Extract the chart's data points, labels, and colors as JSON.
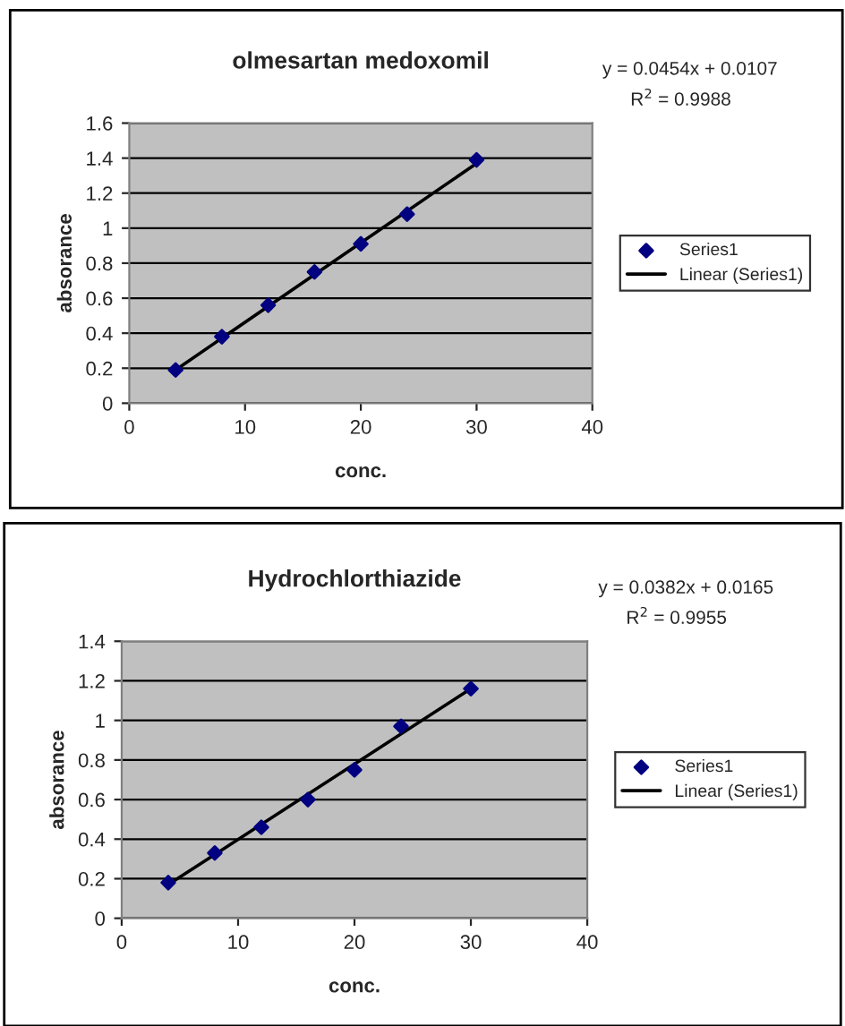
{
  "chart_data": [
    {
      "type": "scatter",
      "title": "olmesartan medoxomil",
      "xlabel": "conc.",
      "ylabel": "absorance",
      "xlim": [
        0,
        40
      ],
      "xticks": [
        0,
        10,
        20,
        30,
        40
      ],
      "ylim": [
        0,
        1.6
      ],
      "yticks": [
        0,
        0.2,
        0.4,
        0.6,
        0.8,
        1,
        1.2,
        1.4,
        1.6
      ],
      "grid": "y",
      "legend": "right",
      "annotations": [
        "y = 0.0454x + 0.0107",
        "R$^{2}$ = 0.9988"
      ],
      "series": [
        {
          "name": "Series1",
          "marker": "diamond",
          "color": "#000080",
          "x": [
            4,
            8,
            12,
            16,
            20,
            24,
            30
          ],
          "values": [
            0.19,
            0.38,
            0.56,
            0.75,
            0.91,
            1.08,
            1.39
          ]
        },
        {
          "name": "Linear (Series1)",
          "type": "line",
          "color": "#000000",
          "line_style": "solid",
          "x": [
            4,
            30
          ],
          "values": [
            0.19,
            1.37
          ]
        }
      ]
    },
    {
      "type": "scatter",
      "title": "Hydrochlorthiazide",
      "xlabel": "conc.",
      "ylabel": "absorance",
      "xlim": [
        0,
        40
      ],
      "xticks": [
        0,
        10,
        20,
        30,
        40
      ],
      "ylim": [
        0,
        1.4
      ],
      "yticks": [
        0,
        0.2,
        0.4,
        0.6,
        0.8,
        1,
        1.2,
        1.4
      ],
      "grid": "y",
      "legend": "right",
      "annotations": [
        "y = 0.0382x + 0.0165",
        "R$^{2}$ = 0.9955"
      ],
      "series": [
        {
          "name": "Series1",
          "marker": "diamond",
          "color": "#000080",
          "x": [
            4,
            8,
            12,
            16,
            20,
            24,
            30
          ],
          "values": [
            0.18,
            0.33,
            0.46,
            0.6,
            0.75,
            0.97,
            1.16
          ]
        },
        {
          "name": "Linear (Series1)",
          "type": "line",
          "color": "#000000",
          "line_style": "solid",
          "x": [
            4,
            30
          ],
          "values": [
            0.17,
            1.16
          ]
        }
      ]
    }
  ]
}
